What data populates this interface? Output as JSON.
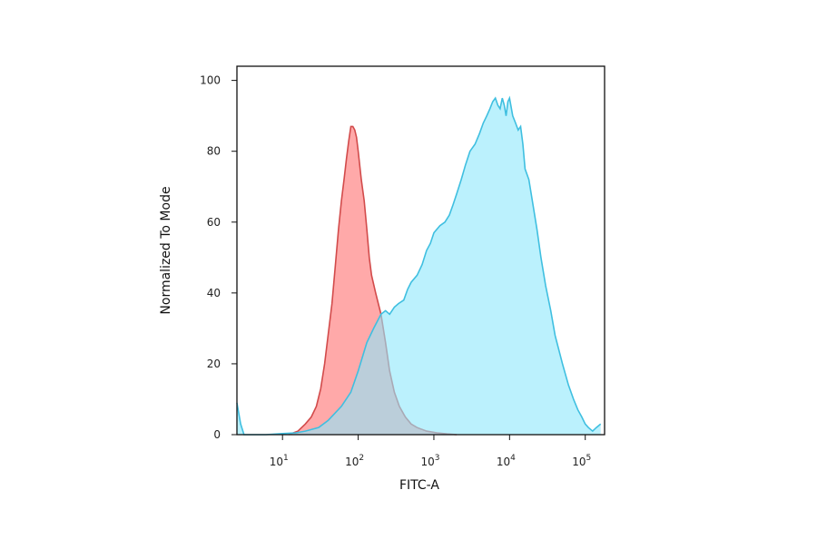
{
  "chart_data": {
    "type": "area",
    "title": "",
    "xlabel": "FITC-A",
    "ylabel": "Normalized To Mode",
    "x_scale": "log",
    "y_scale": "linear",
    "xlim": [
      2.5,
      180000
    ],
    "ylim": [
      0,
      104
    ],
    "x_ticks": [
      {
        "value": 10,
        "base": "10",
        "exp": "1"
      },
      {
        "value": 100,
        "base": "10",
        "exp": "2"
      },
      {
        "value": 1000,
        "base": "10",
        "exp": "3"
      },
      {
        "value": 10000,
        "base": "10",
        "exp": "4"
      },
      {
        "value": 100000,
        "base": "10",
        "exp": "5"
      }
    ],
    "y_ticks": [
      {
        "value": 0,
        "label": "0"
      },
      {
        "value": 20,
        "label": "20"
      },
      {
        "value": 40,
        "label": "40"
      },
      {
        "value": 60,
        "label": "60"
      },
      {
        "value": 80,
        "label": "80"
      },
      {
        "value": 100,
        "label": "100"
      }
    ],
    "grid": false,
    "legend": "none",
    "series": [
      {
        "color": "#ff6b6b",
        "fill": "#ff9a9a",
        "stroke": "#d24b4b",
        "x": [
          12,
          16,
          20,
          24,
          28,
          32,
          36,
          40,
          45,
          50,
          55,
          60,
          65,
          70,
          75,
          80,
          85,
          90,
          95,
          100,
          110,
          120,
          130,
          140,
          150,
          170,
          200,
          230,
          260,
          300,
          350,
          420,
          500,
          600,
          800,
          1100,
          1500,
          2000
        ],
        "y": [
          0,
          1,
          3,
          5,
          8,
          13,
          20,
          28,
          37,
          48,
          58,
          66,
          72,
          78,
          83,
          87,
          87,
          86,
          84,
          80,
          72,
          66,
          58,
          50,
          45,
          40,
          34,
          26,
          18,
          12,
          8,
          5,
          3,
          2,
          1,
          0.5,
          0.2,
          0
        ]
      },
      {
        "color": "#5ad6f0",
        "fill": "#8ee8fb",
        "stroke": "#3fbfe0",
        "x": [
          2.5,
          2.8,
          3.1,
          4,
          6,
          10,
          15,
          20,
          30,
          40,
          60,
          80,
          100,
          130,
          160,
          200,
          230,
          260,
          300,
          340,
          400,
          450,
          500,
          600,
          700,
          800,
          900,
          1000,
          1200,
          1400,
          1600,
          1800,
          2000,
          2300,
          2600,
          3000,
          3500,
          4000,
          4500,
          5000,
          5500,
          6000,
          6500,
          7000,
          7500,
          8000,
          8500,
          9000,
          9500,
          10000,
          11000,
          12000,
          13000,
          14000,
          15000,
          16000,
          18000,
          20000,
          23000,
          26000,
          30000,
          35000,
          40000,
          50000,
          60000,
          70000,
          80000,
          90000,
          100000,
          110000,
          125000,
          140000,
          160000
        ],
        "y": [
          9,
          3,
          0,
          0,
          0,
          0.3,
          0.5,
          1,
          2,
          4,
          8,
          12,
          18,
          26,
          30,
          34,
          35,
          34,
          36,
          37,
          38,
          41,
          43,
          45,
          48,
          52,
          54,
          57,
          59,
          60,
          62,
          65,
          68,
          72,
          76,
          80,
          82,
          85,
          88,
          90,
          92,
          94,
          95,
          93,
          92,
          95,
          93,
          90,
          94,
          95,
          90,
          88,
          86,
          87,
          82,
          75,
          72,
          66,
          58,
          50,
          42,
          35,
          28,
          20,
          14,
          10,
          7,
          5,
          3,
          2,
          1,
          2,
          3
        ]
      }
    ]
  }
}
